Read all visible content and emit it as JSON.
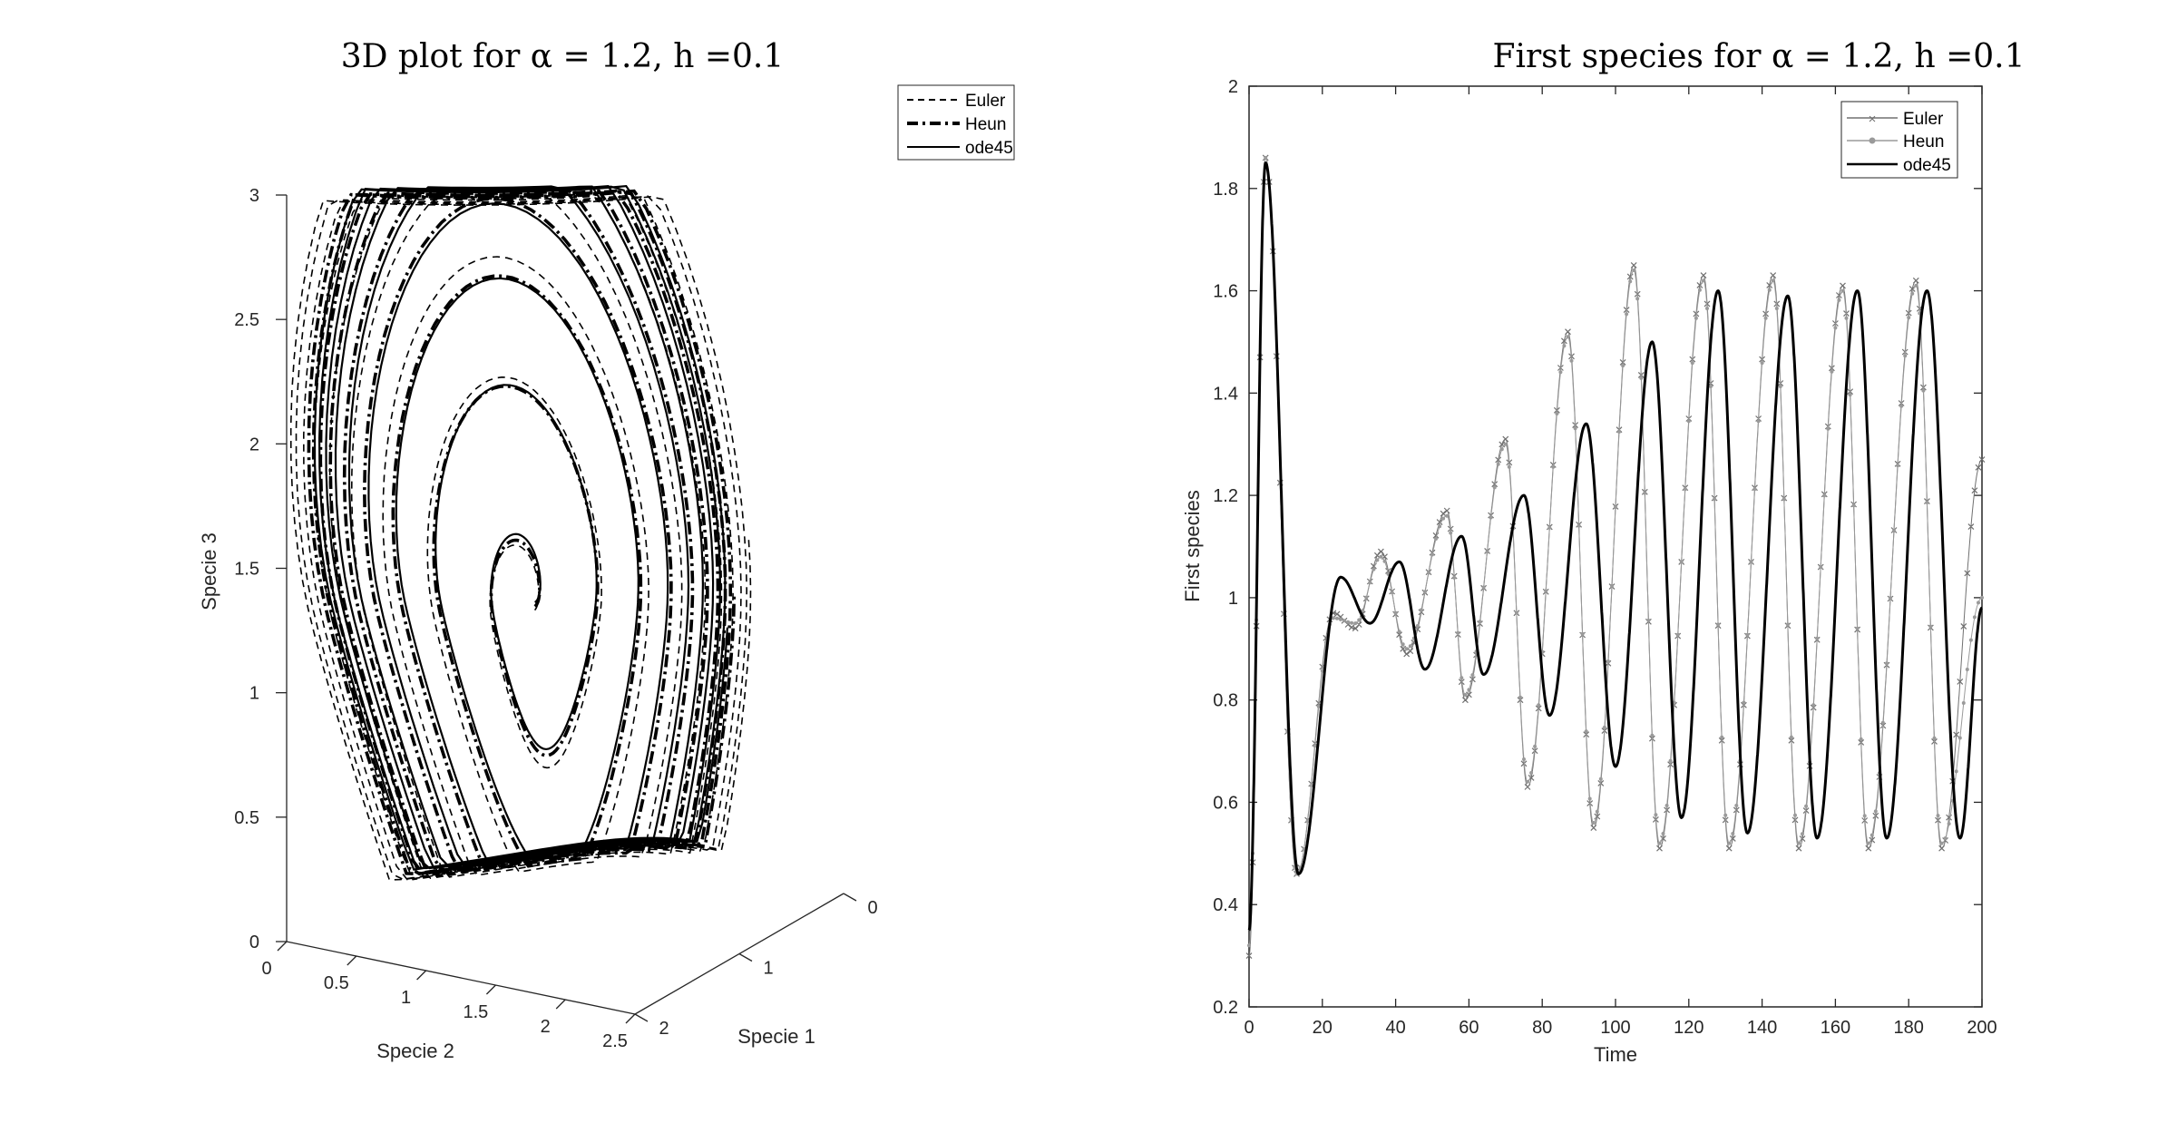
{
  "chart_data": [
    {
      "type": "line3d",
      "title": "3D plot for α = 1.2, h =0.1",
      "xlabel": "Specie 1",
      "ylabel": "Specie 2",
      "zlabel": "Specie 3",
      "xlim": [
        0,
        2
      ],
      "ylim": [
        0,
        2.5
      ],
      "zlim": [
        0,
        3
      ],
      "x_ticks": [
        "0",
        "1",
        "2"
      ],
      "y_ticks": [
        "0",
        "0.5",
        "1",
        "1.5",
        "2",
        "2.5"
      ],
      "z_ticks": [
        "0",
        "0.5",
        "1",
        "1.5",
        "2",
        "2.5",
        "3"
      ],
      "grid": false,
      "legend_position": "top-right",
      "series": [
        {
          "name": "Euler",
          "style": "dashed"
        },
        {
          "name": "Heun",
          "style": "dash-dot-thick"
        },
        {
          "name": "ode45",
          "style": "solid"
        }
      ],
      "spiral": {
        "center_s1": 1.0,
        "center_s2": 1.0,
        "center_s3": 1.2,
        "start_s1": 1.0,
        "start_s2": 1.1,
        "start_s3": 1.05,
        "max_s3": 2.95,
        "min_s3": 0.12
      }
    },
    {
      "type": "line",
      "title": "First species for α = 1.2, h =0.1",
      "xlabel": "Time",
      "ylabel": "First species",
      "xlim": [
        0,
        200
      ],
      "ylim": [
        0.2,
        2
      ],
      "x_ticks": [
        "0",
        "20",
        "40",
        "60",
        "80",
        "100",
        "120",
        "140",
        "160",
        "180",
        "200"
      ],
      "y_ticks": [
        "0.2",
        "0.4",
        "0.6",
        "0.8",
        "1",
        "1.2",
        "1.4",
        "1.6",
        "1.8",
        "2"
      ],
      "grid": false,
      "legend_position": "top-right",
      "series": [
        {
          "name": "Euler",
          "marker": "x",
          "color": "#707070",
          "points": [
            [
              0,
              0.3
            ],
            [
              4.5,
              1.86
            ],
            [
              13,
              0.46
            ],
            [
              23,
              0.97
            ],
            [
              29,
              0.94
            ],
            [
              36,
              1.09
            ],
            [
              43,
              0.89
            ],
            [
              54,
              1.17
            ],
            [
              59,
              0.8
            ],
            [
              70,
              1.31
            ],
            [
              76,
              0.63
            ],
            [
              87,
              1.52
            ],
            [
              94,
              0.55
            ],
            [
              105,
              1.65
            ],
            [
              112,
              0.51
            ],
            [
              124,
              1.63
            ],
            [
              131,
              0.51
            ],
            [
              143,
              1.63
            ],
            [
              150,
              0.51
            ],
            [
              162,
              1.61
            ],
            [
              169,
              0.51
            ],
            [
              182,
              1.62
            ],
            [
              189,
              0.51
            ],
            [
              200,
              1.27
            ]
          ]
        },
        {
          "name": "Heun",
          "marker": "dot",
          "color": "#9a9a9a",
          "points": [
            [
              0,
              0.32
            ],
            [
              4.5,
              1.86
            ],
            [
              13,
              0.46
            ],
            [
              23,
              0.96
            ],
            [
              29,
              0.95
            ],
            [
              36,
              1.08
            ],
            [
              43,
              0.9
            ],
            [
              54,
              1.16
            ],
            [
              59,
              0.81
            ],
            [
              70,
              1.3
            ],
            [
              76,
              0.64
            ],
            [
              87,
              1.51
            ],
            [
              94,
              0.56
            ],
            [
              105,
              1.64
            ],
            [
              112,
              0.52
            ],
            [
              124,
              1.62
            ],
            [
              131,
              0.52
            ],
            [
              143,
              1.62
            ],
            [
              150,
              0.52
            ],
            [
              162,
              1.6
            ],
            [
              169,
              0.52
            ],
            [
              182,
              1.61
            ],
            [
              189,
              0.52
            ],
            [
              200,
              1.0
            ]
          ]
        },
        {
          "name": "ode45",
          "marker": "none",
          "color": "#000000",
          "points": [
            [
              0,
              0.35
            ],
            [
              4.5,
              1.85
            ],
            [
              13.5,
              0.46
            ],
            [
              25,
              1.04
            ],
            [
              33,
              0.95
            ],
            [
              41,
              1.07
            ],
            [
              48,
              0.86
            ],
            [
              58,
              1.12
            ],
            [
              64,
              0.85
            ],
            [
              75,
              1.2
            ],
            [
              82,
              0.77
            ],
            [
              92,
              1.34
            ],
            [
              100,
              0.67
            ],
            [
              110,
              1.5
            ],
            [
              118,
              0.57
            ],
            [
              128,
              1.6
            ],
            [
              136,
              0.54
            ],
            [
              147,
              1.59
            ],
            [
              155,
              0.53
            ],
            [
              166,
              1.6
            ],
            [
              174,
              0.53
            ],
            [
              185,
              1.6
            ],
            [
              194,
              0.53
            ],
            [
              200,
              0.98
            ]
          ]
        }
      ]
    }
  ]
}
